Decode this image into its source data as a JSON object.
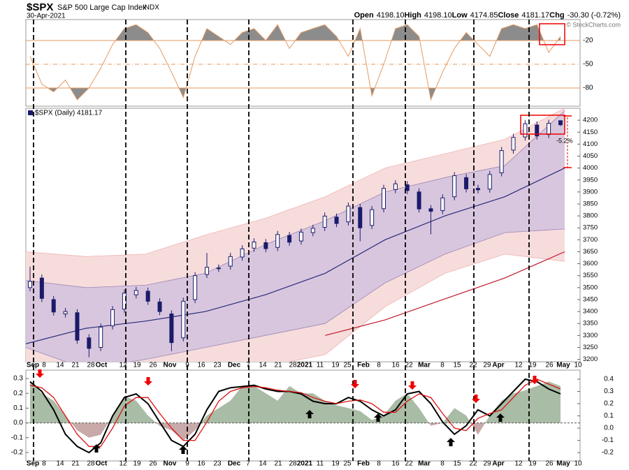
{
  "header": {
    "symbol": "$SPX",
    "name": "S&P 500 Large Cap Index",
    "exchange": "INDX",
    "date": "30-Apr-2021",
    "quote": [
      [
        "Open",
        "4198.10"
      ],
      [
        "High",
        "4198.10"
      ],
      [
        "Low",
        "4174.85"
      ],
      [
        "Close",
        "4181.17"
      ],
      [
        "Chg",
        "-30.30 (-0.72%)"
      ]
    ],
    "credit": "© StockCharts.com"
  },
  "x_labels": [
    "Sep",
    "8",
    "14",
    "21",
    "28",
    "Oct",
    "12",
    "19",
    "26",
    "Nov",
    "9",
    "16",
    "23",
    "Dec",
    "7",
    "14",
    "21",
    "28",
    "2021",
    "11",
    "19",
    "25",
    "Feb",
    "8",
    "16",
    "22",
    "Mar",
    "8",
    "15",
    "22",
    "29",
    "Apr",
    "12",
    "19",
    "26",
    "May",
    "10"
  ],
  "chart_data": [
    {
      "type": "line",
      "color": "#e39a62",
      "fill": "#8c8c8c",
      "ylim": [
        -103,
        6.5
      ],
      "yticks": [
        -20,
        -50,
        -80
      ],
      "values": [
        -40,
        -75,
        -85,
        -70,
        -95,
        -80,
        -55,
        -25,
        -5,
        0,
        -10,
        -30,
        -60,
        -92,
        -40,
        -5,
        -15,
        -25,
        -10,
        -5,
        -20,
        0,
        -30,
        -10,
        -5,
        0,
        -15,
        -40,
        -5,
        -90,
        -50,
        -5,
        0,
        -15,
        -95,
        -60,
        -30,
        -10,
        -25,
        -40,
        -5,
        0,
        -5,
        0,
        -35,
        -15
      ]
    },
    {
      "type": "candlestick",
      "title": "$SPX (Daily) 4181.17",
      "color": "#1b1b6b",
      "ylim": [
        3190,
        4250
      ],
      "yticks": [
        3200,
        3250,
        3300,
        3350,
        3400,
        3450,
        3500,
        3550,
        3600,
        3650,
        3700,
        3750,
        3800,
        3850,
        3900,
        3950,
        4000,
        4050,
        4100,
        4150,
        4200
      ],
      "open": [
        3500,
        3540,
        3450,
        3390,
        3395,
        3290,
        3250,
        3340,
        3410,
        3470,
        3485,
        3440,
        3390,
        3290,
        3450,
        3555,
        3580,
        3590,
        3628,
        3665,
        3688,
        3668,
        3718,
        3695,
        3730,
        3752,
        3795,
        3775,
        3835,
        3760,
        3830,
        3910,
        3930,
        3900,
        3830,
        3822,
        3880,
        3960,
        3915,
        3912,
        3980,
        4075,
        4130,
        4180,
        4140,
        4198
      ],
      "high": [
        3588,
        3555,
        3465,
        3415,
        3410,
        3305,
        3350,
        3423,
        3492,
        3503,
        3500,
        3455,
        3405,
        3458,
        3565,
        3645,
        3597,
        3645,
        3677,
        3706,
        3703,
        3737,
        3733,
        3747,
        3763,
        3814,
        3810,
        3856,
        3850,
        3841,
        3930,
        3949,
        3945,
        3915,
        3845,
        3890,
        3983,
        3975,
        3930,
        3988,
        4088,
        4143,
        4200,
        4195,
        4202,
        4198
      ],
      "low": [
        3485,
        3440,
        3383,
        3375,
        3265,
        3209,
        3235,
        3325,
        3395,
        3455,
        3428,
        3385,
        3234,
        3275,
        3435,
        3540,
        3565,
        3575,
        3613,
        3650,
        3648,
        3653,
        3675,
        3680,
        3715,
        3737,
        3753,
        3760,
        3694,
        3745,
        3815,
        3895,
        3891,
        3814,
        3723,
        3807,
        3865,
        3898,
        3894,
        3897,
        3965,
        4060,
        4115,
        4119,
        4125,
        4175
      ],
      "close": [
        3526,
        3455,
        3398,
        3400,
        3280,
        3246,
        3335,
        3408,
        3477,
        3488,
        3443,
        3400,
        3270,
        3443,
        3550,
        3585,
        3582,
        3630,
        3662,
        3691,
        3663,
        3722,
        3690,
        3732,
        3748,
        3799,
        3768,
        3841,
        3750,
        3826,
        3915,
        3934,
        3906,
        3829,
        3819,
        3875,
        3968,
        3913,
        3909,
        3973,
        4073,
        4128,
        4185,
        4134,
        4187,
        4181
      ],
      "bands": {
        "upper_outer": [
          3650,
          3630,
          3640,
          3720,
          3790,
          3880,
          4000,
          4060,
          4120,
          4250
        ],
        "upper_inner": [
          3530,
          3500,
          3510,
          3560,
          3680,
          3780,
          3900,
          3960,
          4010,
          4240
        ],
        "middle": [
          3265,
          3330,
          3360,
          3400,
          3470,
          3560,
          3700,
          3800,
          3880,
          4000
        ],
        "lower_inner": [
          3250,
          3160,
          3200,
          3250,
          3300,
          3350,
          3520,
          3640,
          3730,
          3745
        ],
        "lower_outer": [
          3180,
          3050,
          3080,
          3120,
          3170,
          3220,
          3420,
          3560,
          3640,
          3610
        ],
        "long_ma": [
          null,
          null,
          null,
          null,
          null,
          3300,
          3365,
          3453,
          3540,
          3650
        ]
      },
      "band_colors": {
        "outer": "#f7dcdc",
        "inner": "#d8c6de",
        "middle": "#2a2a7a",
        "long_ma": "#c0182b"
      },
      "annotation": "-5.2%"
    },
    {
      "type": "line",
      "ylim": [
        -0.257,
        0.357
      ],
      "yticks": [
        0.3,
        0.2,
        0.1,
        {
          "value": 0,
          "label": "0.0"
        },
        -0.1,
        -0.2
      ],
      "y2lim": [
        -0.268,
        0.474
      ],
      "y2ticks": [
        0.4,
        0.3,
        0.2,
        0.1,
        {
          "value": 0,
          "label": "0.0"
        },
        -0.1,
        -0.2
      ],
      "series": [
        {
          "type": "area",
          "color": "#a9bca5",
          "negative_color": "#c9a9a9",
          "values": [
            0.28,
            0.2,
            0.15,
            0.05,
            -0.05,
            -0.1,
            -0.08,
            0.05,
            0.18,
            0.15,
            0.05,
            -0.02,
            -0.05,
            -0.12,
            -0.05,
            0.05,
            0.1,
            0.15,
            0.25,
            0.25,
            0.2,
            0.15,
            0.25,
            0.2,
            0.2,
            0.15,
            0.12,
            0.1,
            0.08,
            0.02,
            0.05,
            0.15,
            0.2,
            0.1,
            -0.02,
            0,
            0.1,
            0.05,
            -0.08,
            0.05,
            0.15,
            0.2,
            0.22,
            0.25,
            0.28,
            0.25
          ]
        },
        {
          "color": "#000000",
          "axis": "y2",
          "values": [
            0.38,
            0.3,
            0.15,
            -0.05,
            -0.15,
            -0.2,
            -0.12,
            0.1,
            0.25,
            0.28,
            0.2,
            0.05,
            -0.1,
            -0.15,
            -0.05,
            0.15,
            0.3,
            0.33,
            0.34,
            0.35,
            0.32,
            0.3,
            0.3,
            0.28,
            0.22,
            0.2,
            0.2,
            0.25,
            0.22,
            0.15,
            0.1,
            0.15,
            0.28,
            0.3,
            0.2,
            0.05,
            -0.05,
            0.02,
            0.15,
            0.1,
            0.2,
            0.3,
            0.4,
            0.38,
            0.32,
            0.28
          ]
        },
        {
          "color": "#dd1111",
          "axis": "y2",
          "values": [
            0.35,
            0.33,
            0.25,
            0.1,
            -0.05,
            -0.15,
            -0.15,
            0,
            0.18,
            0.25,
            0.25,
            0.12,
            0,
            -0.1,
            -0.1,
            0.05,
            0.22,
            0.3,
            0.33,
            0.34,
            0.33,
            0.31,
            0.3,
            0.29,
            0.25,
            0.22,
            0.2,
            0.22,
            0.23,
            0.2,
            0.13,
            0.13,
            0.22,
            0.28,
            0.25,
            0.12,
            0,
            -0.02,
            0.08,
            0.12,
            0.15,
            0.25,
            0.35,
            0.4,
            0.36,
            0.32
          ]
        }
      ]
    }
  ]
}
